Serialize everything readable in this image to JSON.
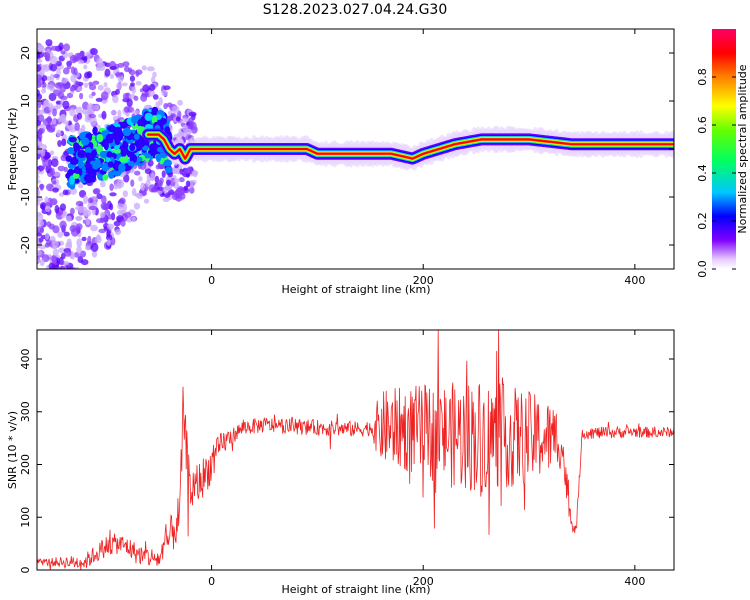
{
  "title": "S128.2023.027.04.24.G30",
  "chart_data": [
    {
      "type": "heatmap",
      "xlabel": "Height of straight line (km)",
      "ylabel": "Frequency (Hz)",
      "xlim": [
        -165,
        437
      ],
      "ylim": [
        -25,
        25
      ],
      "xticks": [
        0,
        200,
        400
      ],
      "yticks": [
        -20,
        -10,
        0,
        10,
        20
      ],
      "colorbar": {
        "label": "Normalized spectral amplitude",
        "range": [
          0,
          1
        ],
        "ticks": [
          0.0,
          0.2,
          0.4,
          0.6,
          0.8
        ]
      },
      "ridge": {
        "x": [
          -165,
          -150,
          -135,
          -120,
          -110,
          -100,
          -90,
          -80,
          -70,
          -60,
          -50,
          -45,
          -40,
          -35,
          -30,
          -25,
          -20,
          0,
          50,
          90,
          100,
          150,
          170,
          190,
          200,
          215,
          230,
          255,
          300,
          340,
          360,
          400,
          437
        ],
        "y": [
          -7,
          -4,
          -3,
          -2,
          -1,
          -1,
          0,
          1,
          2,
          3,
          3,
          2,
          0,
          -1,
          0,
          -2,
          0,
          0,
          0,
          0,
          -1,
          -1,
          -1,
          -2,
          -1,
          0,
          1,
          2,
          2,
          1,
          1,
          1,
          1
        ]
      }
    },
    {
      "type": "line",
      "xlabel": "Height of straight line (km)",
      "ylabel": "SNR (10 * v/v)",
      "xlim": [
        -165,
        437
      ],
      "ylim": [
        0,
        455
      ],
      "xticks": [
        0,
        200,
        400
      ],
      "yticks": [
        0,
        100,
        200,
        300,
        400
      ],
      "color": "#ee2222",
      "envelope": {
        "x": [
          -165,
          -120,
          -110,
          -100,
          -90,
          -80,
          -70,
          -50,
          -40,
          -30,
          -27,
          -20,
          -10,
          0,
          10,
          20,
          30,
          50,
          80,
          100,
          120,
          140,
          150,
          160,
          170,
          190,
          210,
          230,
          250,
          270,
          300,
          320,
          330,
          340,
          345,
          350,
          370,
          400,
          420,
          437
        ],
        "y": [
          15,
          15,
          30,
          45,
          50,
          45,
          30,
          20,
          60,
          100,
          300,
          150,
          170,
          200,
          240,
          255,
          270,
          275,
          272,
          270,
          268,
          267,
          270,
          270,
          270,
          265,
          260,
          255,
          255,
          255,
          250,
          250,
          250,
          90,
          80,
          260,
          260,
          262,
          260,
          262
        ]
      },
      "noise": {
        "x": [
          -165,
          -100,
          -50,
          -30,
          0,
          20,
          150,
          160,
          200,
          250,
          300,
          330,
          340,
          350,
          437
        ],
        "y": [
          5,
          20,
          20,
          50,
          35,
          15,
          15,
          70,
          90,
          110,
          90,
          60,
          15,
          12,
          10
        ]
      }
    }
  ]
}
